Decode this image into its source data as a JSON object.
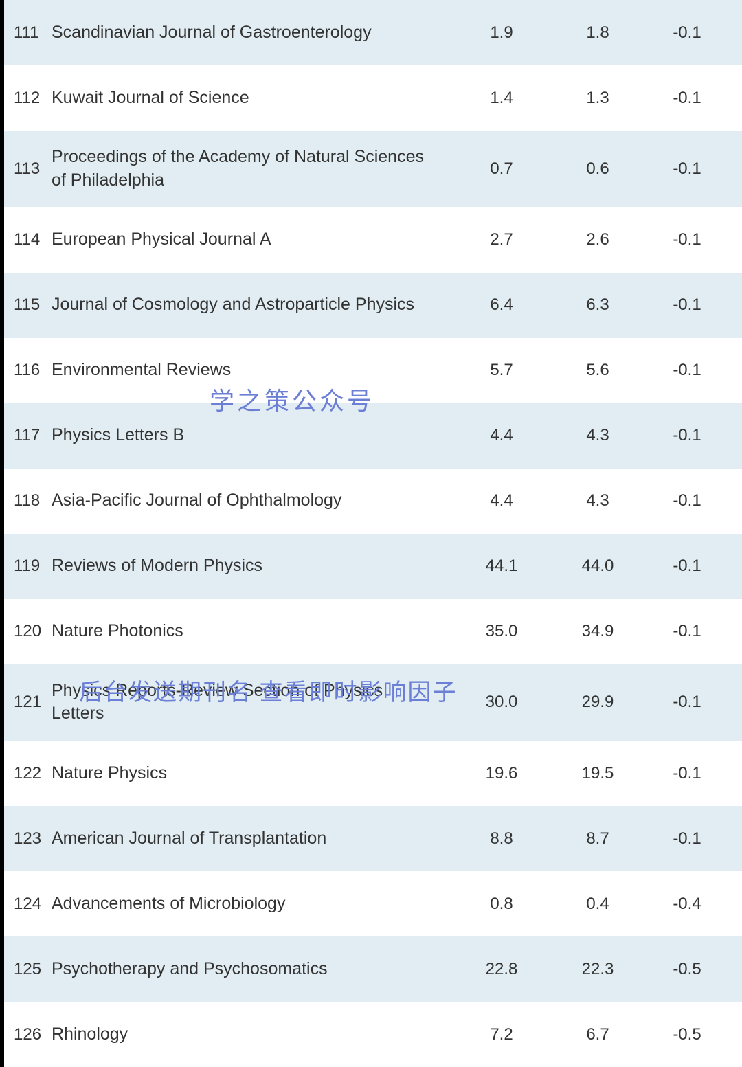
{
  "table": {
    "row_odd_bg": "#e1edf2",
    "row_even_bg": "#ffffff",
    "text_color": "#333333",
    "watermark_color": "#6b7fd6",
    "rows": [
      {
        "num": "111",
        "name": "Scandinavian Journal of Gastroenterology",
        "val1": "1.9",
        "val2": "1.8",
        "diff": "-0.1"
      },
      {
        "num": "112",
        "name": "Kuwait Journal of Science",
        "val1": "1.4",
        "val2": "1.3",
        "diff": "-0.1"
      },
      {
        "num": "113",
        "name": "Proceedings of the Academy of Natural Sciences of Philadelphia",
        "val1": "0.7",
        "val2": "0.6",
        "diff": "-0.1"
      },
      {
        "num": "114",
        "name": "European Physical Journal A",
        "val1": "2.7",
        "val2": "2.6",
        "diff": "-0.1"
      },
      {
        "num": "115",
        "name": "Journal of Cosmology and Astroparticle Physics",
        "val1": "6.4",
        "val2": "6.3",
        "diff": "-0.1"
      },
      {
        "num": "116",
        "name": "Environmental Reviews",
        "val1": "5.7",
        "val2": "5.6",
        "diff": "-0.1"
      },
      {
        "num": "117",
        "name": "Physics Letters B",
        "val1": "4.4",
        "val2": "4.3",
        "diff": "-0.1"
      },
      {
        "num": "118",
        "name": "Asia-Pacific Journal of Ophthalmology",
        "val1": "4.4",
        "val2": "4.3",
        "diff": "-0.1"
      },
      {
        "num": "119",
        "name": "Reviews of Modern Physics",
        "val1": "44.1",
        "val2": "44.0",
        "diff": "-0.1"
      },
      {
        "num": "120",
        "name": "Nature Photonics",
        "val1": "35.0",
        "val2": "34.9",
        "diff": "-0.1"
      },
      {
        "num": "121",
        "name": "Physics Reports-Review Section of Physics Letters",
        "val1": "30.0",
        "val2": "29.9",
        "diff": "-0.1"
      },
      {
        "num": "122",
        "name": "Nature Physics",
        "val1": "19.6",
        "val2": "19.5",
        "diff": "-0.1"
      },
      {
        "num": "123",
        "name": "American Journal of Transplantation",
        "val1": "8.8",
        "val2": "8.7",
        "diff": "-0.1"
      },
      {
        "num": "124",
        "name": "Advancements of Microbiology",
        "val1": "0.8",
        "val2": "0.4",
        "diff": "-0.4"
      },
      {
        "num": "125",
        "name": "Psychotherapy and Psychosomatics",
        "val1": "22.8",
        "val2": "22.3",
        "diff": "-0.5"
      },
      {
        "num": "126",
        "name": "Rhinology",
        "val1": "7.2",
        "val2": "6.7",
        "diff": "-0.5"
      }
    ]
  },
  "watermarks": {
    "wm1": "学之策公众号",
    "wm2": "后台发送期刊名 查看即时影响因子"
  }
}
